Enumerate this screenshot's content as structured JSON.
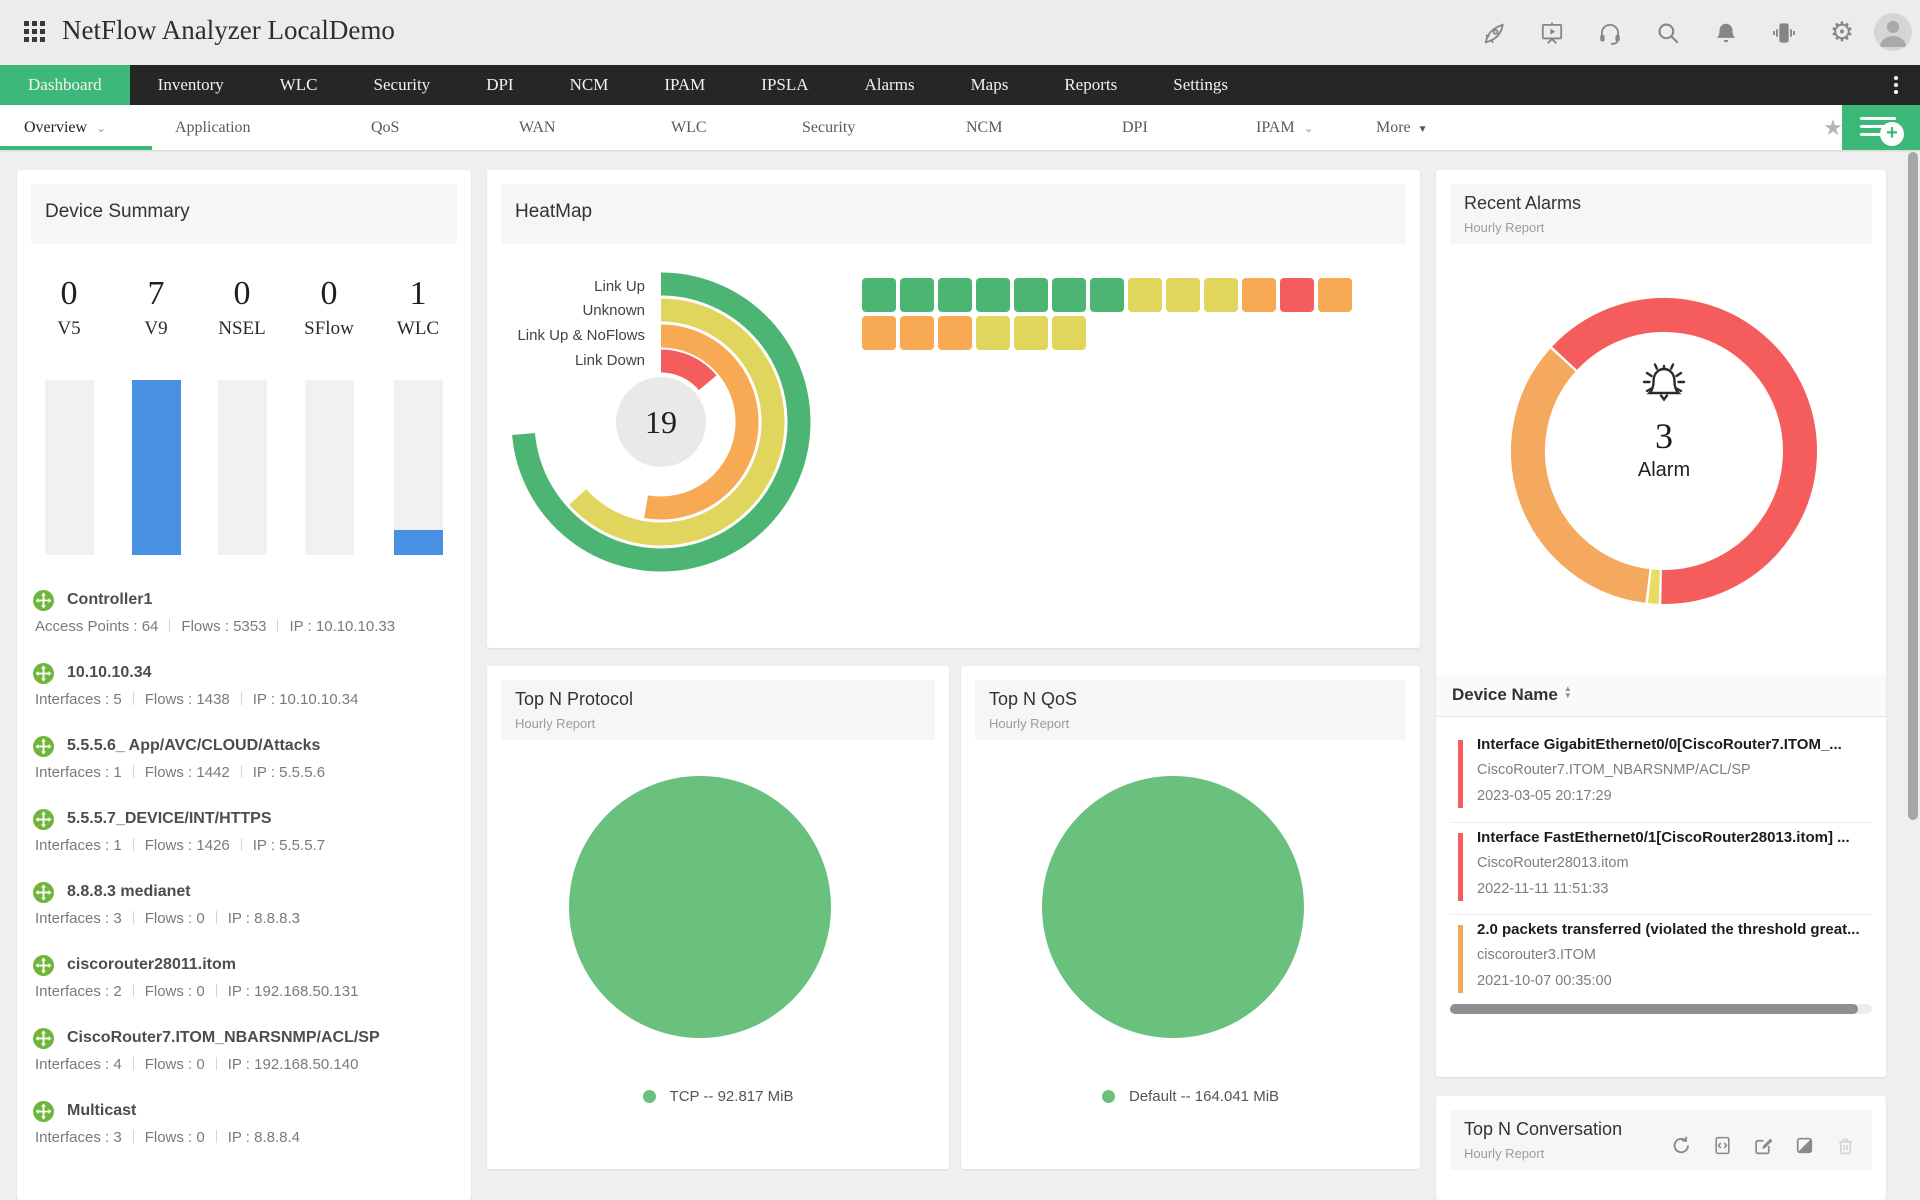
{
  "topbar": {
    "title": "NetFlow Analyzer LocalDemo",
    "icons": [
      "apps-grid",
      "rocket",
      "presentation",
      "headset",
      "search",
      "bell",
      "vibrate",
      "settings-gear",
      "user-avatar"
    ]
  },
  "nav": {
    "items": [
      {
        "label": "Dashboard",
        "active": true
      },
      {
        "label": "Inventory"
      },
      {
        "label": "WLC"
      },
      {
        "label": "Security"
      },
      {
        "label": "DPI"
      },
      {
        "label": "NCM"
      },
      {
        "label": "IPAM"
      },
      {
        "label": "IPSLA"
      },
      {
        "label": "Alarms"
      },
      {
        "label": "Maps"
      },
      {
        "label": "Reports"
      },
      {
        "label": "Settings"
      }
    ]
  },
  "subnav": {
    "items": [
      {
        "label": "Overview",
        "active": true,
        "chevron": true
      },
      {
        "label": "Application"
      },
      {
        "label": "QoS"
      },
      {
        "label": "WAN"
      },
      {
        "label": "WLC"
      },
      {
        "label": "Security"
      },
      {
        "label": "NCM"
      },
      {
        "label": "DPI"
      },
      {
        "label": "IPAM",
        "chevron": true
      },
      {
        "label": "More",
        "dropdown": true
      }
    ]
  },
  "device_summary": {
    "title": "Device Summary",
    "stats": [
      {
        "value": "0",
        "label": "V5"
      },
      {
        "value": "7",
        "label": "V9"
      },
      {
        "value": "0",
        "label": "NSEL"
      },
      {
        "value": "0",
        "label": "SFlow"
      },
      {
        "value": "1",
        "label": "WLC"
      }
    ],
    "devices": [
      {
        "name": "Controller1",
        "metrics": [
          "Access Points : 64",
          "Flows : 5353",
          "IP : 10.10.10.33"
        ]
      },
      {
        "name": "10.10.10.34",
        "metrics": [
          "Interfaces : 5",
          "Flows : 1438",
          "IP : 10.10.10.34"
        ]
      },
      {
        "name": "5.5.5.6_ App/AVC/CLOUD/Attacks",
        "metrics": [
          "Interfaces : 1",
          "Flows : 1442",
          "IP : 5.5.5.6"
        ]
      },
      {
        "name": "5.5.5.7_DEVICE/INT/HTTPS",
        "metrics": [
          "Interfaces : 1",
          "Flows : 1426",
          "IP : 5.5.5.7"
        ]
      },
      {
        "name": "8.8.8.3 medianet",
        "metrics": [
          "Interfaces : 3",
          "Flows : 0",
          "IP : 8.8.8.3"
        ]
      },
      {
        "name": "ciscorouter28011.itom",
        "metrics": [
          "Interfaces : 2",
          "Flows : 0",
          "IP : 192.168.50.131"
        ]
      },
      {
        "name": "CiscoRouter7.ITOM_NBARSNMP/ACL/SP",
        "metrics": [
          "Interfaces : 4",
          "Flows : 0",
          "IP : 192.168.50.140"
        ]
      },
      {
        "name": "Multicast",
        "metrics": [
          "Interfaces : 3",
          "Flows : 0",
          "IP : 8.8.8.4"
        ]
      }
    ]
  },
  "heatmap": {
    "title": "HeatMap",
    "center_count": "19"
  },
  "top_n_protocol": {
    "title": "Top N Protocol",
    "subtitle": "Hourly Report",
    "legend": "TCP -- 92.817 MiB"
  },
  "top_n_qos": {
    "title": "Top N QoS",
    "subtitle": "Hourly Report",
    "legend": "Default -- 164.041 MiB"
  },
  "recent_alarms": {
    "title": "Recent Alarms",
    "subtitle": "Hourly Report",
    "count": "3",
    "count_label": "Alarm",
    "table_header": "Device Name",
    "alarms": [
      {
        "title": "Interface GigabitEthernet0/0[CiscoRouter7.ITOM_...",
        "device": "CiscoRouter7.ITOM_NBARSNMP/ACL/SP",
        "time": "2023-03-05 20:17:29",
        "severity": "critical"
      },
      {
        "title": "Interface FastEthernet0/1[CiscoRouter28013.itom] ...",
        "device": "CiscoRouter28013.itom",
        "time": "2022-11-11 11:51:33",
        "severity": "critical"
      },
      {
        "title": "2.0 packets transferred (violated the threshold great...",
        "device": "ciscorouter3.ITOM",
        "time": "2021-10-07 00:35:00",
        "severity": "warning"
      }
    ]
  },
  "top_n_conversation": {
    "title": "Top N Conversation",
    "subtitle": "Hourly Report",
    "actions": [
      "refresh",
      "embed",
      "edit",
      "contrast",
      "delete"
    ]
  },
  "colors": {
    "accent_green": "#3cb878",
    "bar_blue": "#4a90e2",
    "status_green": "#4db573",
    "status_yellow": "#e0d65e",
    "status_orange": "#f7a954",
    "status_red": "#f55c5c",
    "pie_green": "#69c17d",
    "severity": {
      "critical": "#f55c5c",
      "warning": "#f0a859"
    }
  },
  "chart_data": [
    {
      "id": "device-summary-bars",
      "type": "bar",
      "categories": [
        "V5",
        "V9",
        "NSEL",
        "SFlow",
        "WLC"
      ],
      "values": [
        0,
        7,
        0,
        0,
        1
      ],
      "ylim": [
        0,
        7
      ],
      "bar_color": "#4a90e2",
      "track_color": "#f1f1f1"
    },
    {
      "id": "interface-status-radial",
      "type": "radial-bar",
      "title": "HeatMap",
      "categories": [
        "Link Up",
        "Unknown",
        "Link Up & NoFlows",
        "Link Down"
      ],
      "values": [
        7,
        6,
        5,
        1
      ],
      "sweep_degrees": [
        265,
        228,
        190,
        50
      ],
      "colors": [
        "#4db573",
        "#e0d65e",
        "#f7a954",
        "#f55c5c"
      ],
      "center_total": 19
    },
    {
      "id": "interface-status-grid",
      "type": "heatmap",
      "legend": {
        "green": "Link Up",
        "yellow": "Unknown",
        "orange": "Link Up & NoFlows",
        "red": "Link Down"
      },
      "rows": [
        [
          "green",
          "green",
          "green",
          "green",
          "green",
          "green",
          "green",
          "yellow",
          "yellow",
          "yellow",
          "orange",
          "red",
          "orange"
        ],
        [
          "orange",
          "orange",
          "orange",
          "yellow",
          "yellow",
          "yellow"
        ]
      ]
    },
    {
      "id": "top-n-protocol-pie",
      "type": "pie",
      "title": "Top N Protocol",
      "slices": [
        {
          "label": "TCP",
          "value_mib": 92.817,
          "pct": 100,
          "color": "#69c17d"
        }
      ],
      "legend": "TCP -- 92.817 MiB"
    },
    {
      "id": "top-n-qos-pie",
      "type": "pie",
      "title": "Top N QoS",
      "slices": [
        {
          "label": "Default",
          "value_mib": 164.041,
          "pct": 100,
          "color": "#69c17d"
        }
      ],
      "legend": "Default -- 164.041 MiB"
    },
    {
      "id": "recent-alarms-donut",
      "type": "donut",
      "total": 3,
      "segments": [
        {
          "severity": "critical",
          "color": "#f55c5c",
          "start_deg": -47,
          "sweep_deg": 228
        },
        {
          "severity": "attention",
          "color": "#e8dc63",
          "start_deg": 182,
          "sweep_deg": 4
        },
        {
          "severity": "trouble",
          "color": "#f5a95f",
          "start_deg": 187,
          "sweep_deg": 125
        }
      ]
    }
  ]
}
